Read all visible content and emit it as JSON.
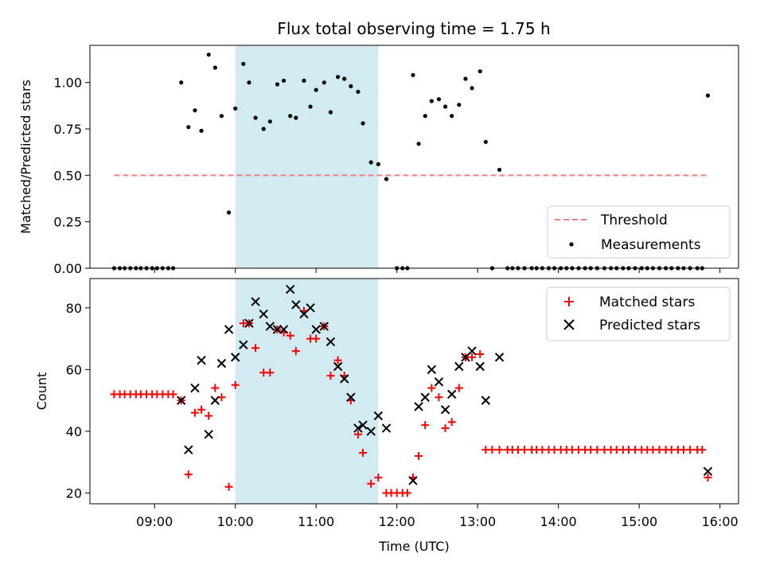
{
  "title": "Flux total observing time = 1.75 h",
  "colors": {
    "threshold": "#f08080",
    "measurement": "#000000",
    "matched": "#ff0000",
    "predicted": "#000000",
    "shade": "#add8e6"
  },
  "chart_data": [
    {
      "type": "scatter",
      "ylabel": "Matched/Predicted stars",
      "xlim": [
        8.2,
        16.23
      ],
      "ylim": [
        0,
        1.2
      ],
      "yticks": [
        0.0,
        0.25,
        0.5,
        0.75,
        1.0
      ],
      "ytick_labels": [
        "0.00",
        "0.25",
        "0.50",
        "0.75",
        "1.00"
      ],
      "shaded_span": [
        10.0,
        11.77
      ],
      "threshold": {
        "name": "Threshold",
        "y": 0.5,
        "x": [
          8.5,
          15.85
        ]
      },
      "legend": {
        "location": "lower right",
        "entries": [
          "Threshold",
          "Measurements"
        ]
      },
      "series": [
        {
          "name": "Measurements",
          "x": [
            8.5,
            8.57,
            8.63,
            8.7,
            8.77,
            8.83,
            8.9,
            8.97,
            9.03,
            9.1,
            9.17,
            9.23,
            9.33,
            9.42,
            9.5,
            9.58,
            9.67,
            9.75,
            9.83,
            9.92,
            10.0,
            10.1,
            10.17,
            10.25,
            10.35,
            10.43,
            10.52,
            10.6,
            10.68,
            10.75,
            10.85,
            10.93,
            11.0,
            11.1,
            11.18,
            11.27,
            11.35,
            11.43,
            11.52,
            11.58,
            11.68,
            11.77,
            11.87,
            12.0,
            12.07,
            12.13,
            12.2,
            12.27,
            12.35,
            12.43,
            12.52,
            12.6,
            12.68,
            12.77,
            12.85,
            12.93,
            13.03,
            13.1,
            13.18,
            13.27,
            13.37,
            13.43,
            13.5,
            13.58,
            13.67,
            13.73,
            13.8,
            13.88,
            13.95,
            14.03,
            14.1,
            14.17,
            14.25,
            14.33,
            14.4,
            14.48,
            14.57,
            14.65,
            14.72,
            14.8,
            14.87,
            14.95,
            15.03,
            15.1,
            15.17,
            15.25,
            15.33,
            15.4,
            15.48,
            15.55,
            15.63,
            15.72,
            15.78,
            15.85
          ],
          "y": [
            0,
            0,
            0,
            0,
            0,
            0,
            0,
            0,
            0,
            0,
            0,
            0,
            1.0,
            0.76,
            0.85,
            0.74,
            1.15,
            1.08,
            0.82,
            0.3,
            0.86,
            1.1,
            1.0,
            0.81,
            0.75,
            0.79,
            0.99,
            1.01,
            0.82,
            0.81,
            1.01,
            0.87,
            0.96,
            1.0,
            0.84,
            1.03,
            1.02,
            0.98,
            0.95,
            0.78,
            0.57,
            0.56,
            0.48,
            0,
            0,
            0,
            1.04,
            0.67,
            0.82,
            0.9,
            0.91,
            0.87,
            0.82,
            0.88,
            1.02,
            0.97,
            1.06,
            0.68,
            0,
            0.53,
            0,
            0,
            0,
            0,
            0,
            0,
            0,
            0,
            0,
            0,
            0,
            0,
            0,
            0,
            0,
            0,
            0,
            0,
            0,
            0,
            0,
            0,
            0,
            0,
            0,
            0,
            0,
            0,
            0,
            0,
            0,
            0,
            0,
            0.93
          ]
        }
      ]
    },
    {
      "type": "scatter",
      "ylabel": "Count",
      "xlabel": "Time (UTC)",
      "xlim": [
        8.2,
        16.23
      ],
      "ylim": [
        16.5,
        89.5
      ],
      "yticks": [
        20,
        40,
        60,
        80
      ],
      "ytick_labels": [
        "20",
        "40",
        "60",
        "80"
      ],
      "xticks": [
        9,
        10,
        11,
        12,
        13,
        14,
        15,
        16
      ],
      "xtick_labels": [
        "09:00",
        "10:00",
        "11:00",
        "12:00",
        "13:00",
        "14:00",
        "15:00",
        "16:00"
      ],
      "shaded_span": [
        10.0,
        11.77
      ],
      "legend": {
        "location": "upper right",
        "entries": [
          "Matched stars",
          "Predicted stars"
        ]
      },
      "series": [
        {
          "name": "Matched stars",
          "marker": "+",
          "x": [
            8.5,
            8.57,
            8.63,
            8.7,
            8.77,
            8.83,
            8.9,
            8.97,
            9.03,
            9.1,
            9.17,
            9.23,
            9.33,
            9.42,
            9.5,
            9.58,
            9.67,
            9.75,
            9.83,
            9.92,
            10.0,
            10.1,
            10.17,
            10.25,
            10.35,
            10.43,
            10.52,
            10.6,
            10.68,
            10.75,
            10.85,
            10.93,
            11.0,
            11.1,
            11.18,
            11.27,
            11.35,
            11.43,
            11.52,
            11.58,
            11.68,
            11.77,
            11.87,
            11.93,
            12.0,
            12.07,
            12.13,
            12.2,
            12.27,
            12.35,
            12.43,
            12.52,
            12.6,
            12.68,
            12.77,
            12.85,
            12.93,
            13.03,
            13.1,
            13.18,
            13.27,
            13.37,
            13.43,
            13.5,
            13.58,
            13.67,
            13.73,
            13.8,
            13.88,
            13.95,
            14.03,
            14.1,
            14.17,
            14.25,
            14.33,
            14.4,
            14.48,
            14.57,
            14.65,
            14.72,
            14.8,
            14.87,
            14.95,
            15.03,
            15.1,
            15.17,
            15.25,
            15.33,
            15.4,
            15.48,
            15.55,
            15.63,
            15.72,
            15.78,
            15.85
          ],
          "y": [
            52,
            52,
            52,
            52,
            52,
            52,
            52,
            52,
            52,
            52,
            52,
            52,
            50,
            26,
            46,
            47,
            45,
            54,
            51,
            22,
            55,
            75,
            75,
            67,
            59,
            59,
            73,
            72,
            71,
            66,
            79,
            70,
            70,
            74,
            58,
            63,
            58,
            50,
            39,
            33,
            23,
            25,
            20,
            20,
            20,
            20,
            20,
            25,
            32,
            42,
            54,
            51,
            41,
            43,
            54,
            64,
            64,
            65,
            34,
            34,
            34,
            34,
            34,
            34,
            34,
            34,
            34,
            34,
            34,
            34,
            34,
            34,
            34,
            34,
            34,
            34,
            34,
            34,
            34,
            34,
            34,
            34,
            34,
            34,
            34,
            34,
            34,
            34,
            34,
            34,
            34,
            34,
            34,
            34,
            25
          ]
        },
        {
          "name": "Predicted stars",
          "marker": "x",
          "x": [
            9.33,
            9.42,
            9.5,
            9.58,
            9.67,
            9.75,
            9.83,
            9.92,
            10.0,
            10.1,
            10.17,
            10.25,
            10.35,
            10.43,
            10.52,
            10.6,
            10.68,
            10.75,
            10.85,
            10.93,
            11.0,
            11.1,
            11.18,
            11.27,
            11.35,
            11.43,
            11.52,
            11.58,
            11.68,
            11.77,
            11.87,
            12.2,
            12.27,
            12.35,
            12.43,
            12.52,
            12.6,
            12.68,
            12.77,
            12.85,
            12.93,
            13.03,
            13.1,
            13.27,
            15.85
          ],
          "y": [
            50,
            34,
            54,
            63,
            39,
            50,
            62,
            73,
            64,
            68,
            75,
            82,
            78,
            74,
            73,
            73,
            86,
            81,
            78,
            80,
            73,
            74,
            69,
            61,
            57,
            51,
            41,
            42,
            40,
            45,
            41,
            24,
            48,
            51,
            60,
            56,
            47,
            52,
            61,
            64,
            66,
            61,
            50,
            64,
            27
          ]
        }
      ]
    }
  ]
}
